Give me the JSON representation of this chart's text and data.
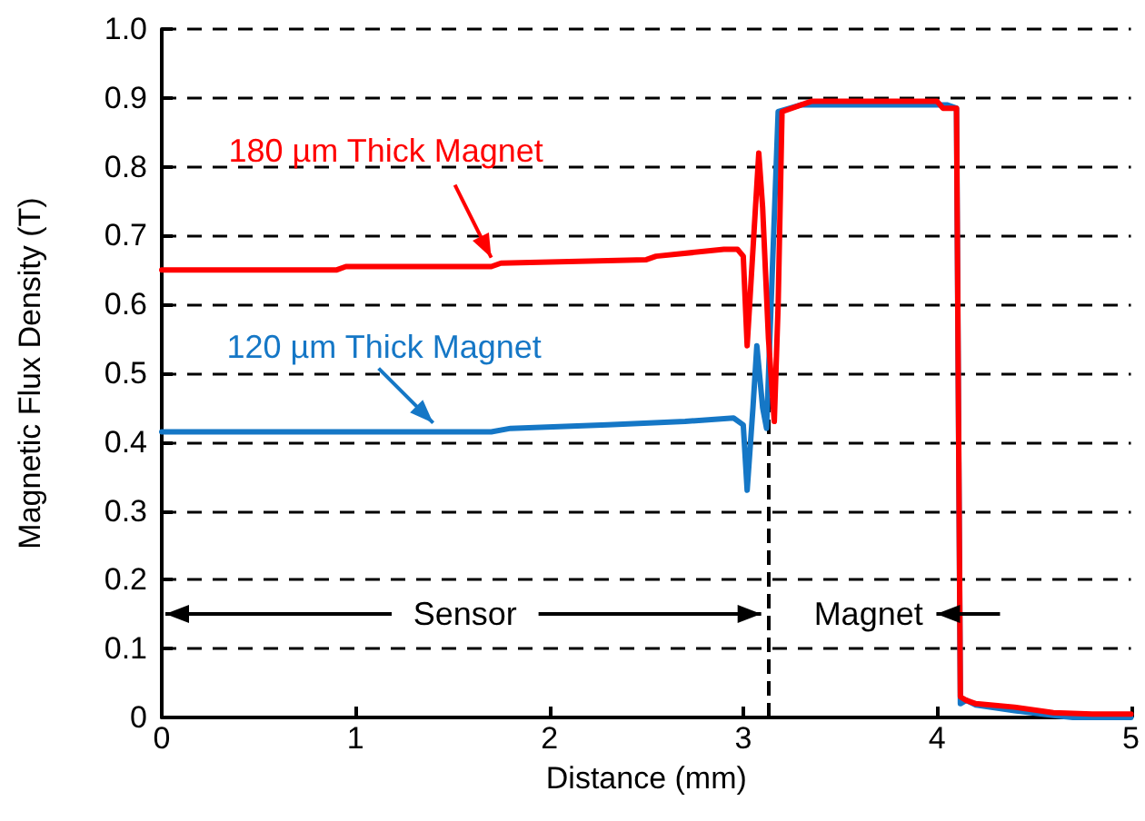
{
  "chart_data": {
    "type": "line",
    "xlabel": "Distance (mm)",
    "ylabel": "Magnetic Flux Density (T)",
    "xlim": [
      0,
      5
    ],
    "xticks": [
      0,
      1,
      2,
      3,
      4,
      5
    ],
    "ylim": [
      0,
      1
    ],
    "yticks": [
      0,
      0.1,
      0.2,
      0.3,
      0.4,
      0.5,
      0.6,
      0.7,
      0.8,
      0.9,
      {
        "value": 1,
        "label": "1.0"
      }
    ],
    "grid": "y",
    "marker": "none",
    "line_style": "solid",
    "series": [
      {
        "color": "#ff0000",
        "x": [
          0,
          0.9,
          0.95,
          1.7,
          1.75,
          2.5,
          2.55,
          2.9,
          2.97,
          3.0,
          3.02,
          3.05,
          3.08,
          3.1,
          3.13,
          3.16,
          3.18,
          3.2,
          3.3,
          3.35,
          4.0,
          4.03,
          4.1,
          4.12,
          4.15,
          4.2,
          4.4,
          4.6,
          4.8,
          5.0
        ],
        "values": [
          0.65,
          0.65,
          0.655,
          0.655,
          0.66,
          0.665,
          0.67,
          0.68,
          0.68,
          0.67,
          0.54,
          0.68,
          0.82,
          0.74,
          0.55,
          0.43,
          0.6,
          0.88,
          0.89,
          0.895,
          0.895,
          0.885,
          0.885,
          0.03,
          0.025,
          0.02,
          0.015,
          0.007,
          0.005,
          0.005
        ]
      },
      {
        "color": "#1577c6",
        "x": [
          0,
          1.7,
          1.8,
          2.3,
          2.7,
          2.95,
          3.0,
          3.02,
          3.05,
          3.07,
          3.1,
          3.12,
          3.15,
          3.18,
          3.3,
          3.35,
          4.05,
          4.1,
          4.12,
          4.15,
          4.2,
          4.4,
          4.6,
          4.7,
          5.0
        ],
        "values": [
          0.415,
          0.415,
          0.42,
          0.425,
          0.43,
          0.435,
          0.425,
          0.33,
          0.45,
          0.54,
          0.45,
          0.42,
          0.65,
          0.88,
          0.89,
          0.89,
          0.89,
          0.885,
          0.02,
          0.025,
          0.018,
          0.01,
          0.003,
          0,
          0
        ]
      }
    ],
    "ref_lines": [
      {
        "axis": "x",
        "value": 3.13,
        "line_style": "dashed",
        "color": "#000000"
      }
    ],
    "annotations": [
      {
        "text": "180 µm Thick Magnet",
        "x": 1.7,
        "y": 0.66
      },
      {
        "text": "120 µm Thick Magnet",
        "x": 1.4,
        "y": 0.42
      },
      "Sensor",
      "Magnet"
    ]
  }
}
